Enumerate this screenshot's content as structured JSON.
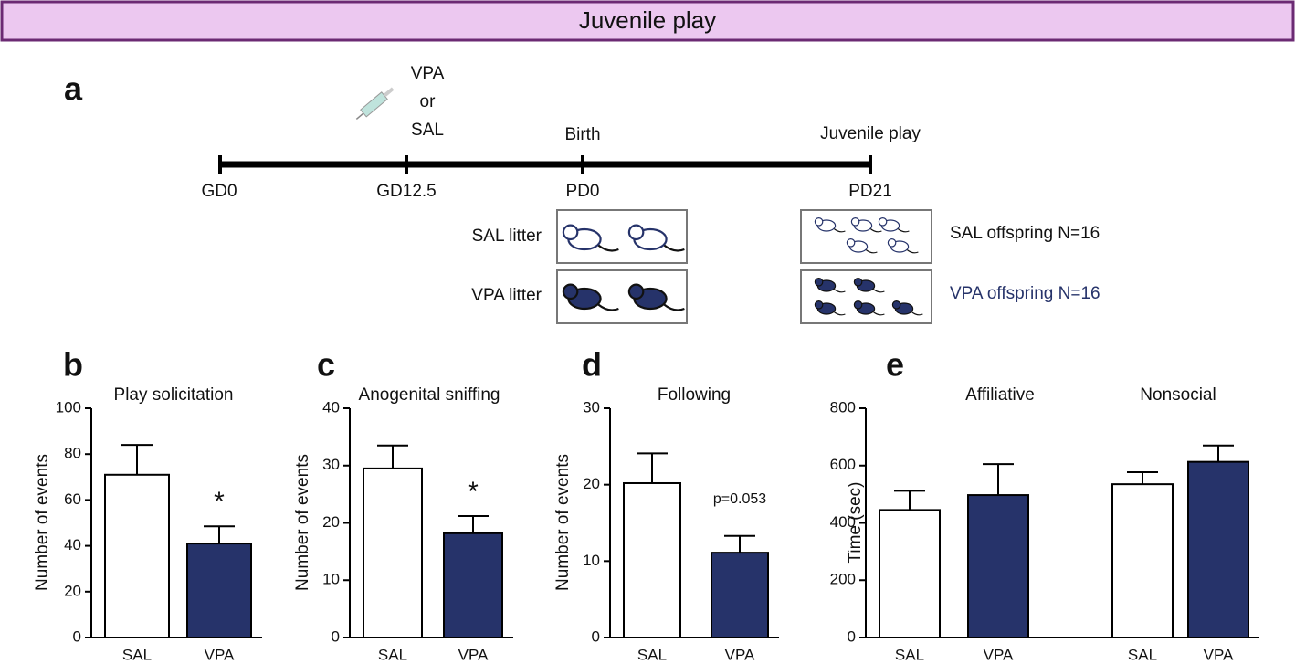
{
  "header": {
    "title": "Juvenile play"
  },
  "timeline": {
    "panel": "a",
    "injection": [
      "VPA",
      "or",
      "SAL"
    ],
    "events": [
      "Birth",
      "Juvenile play"
    ],
    "points": [
      "GD0",
      "GD12.5",
      "PD0",
      "PD21"
    ],
    "litters": [
      "SAL litter",
      "VPA litter"
    ],
    "offspring": [
      "SAL offspring N=16",
      "VPA offspring N=16"
    ]
  },
  "chart_data": [
    {
      "type": "bar",
      "panel": "b",
      "title": "Play solicitation",
      "ylabel": "Number of events",
      "categories": [
        "SAL",
        "VPA"
      ],
      "values": [
        71,
        41
      ],
      "errors": [
        13,
        7.5
      ],
      "colors": [
        "#ffffff",
        "#26336a"
      ],
      "annotation": "*",
      "ylim": [
        0,
        100
      ],
      "yticks": [
        0,
        20,
        40,
        60,
        80,
        100
      ]
    },
    {
      "type": "bar",
      "panel": "c",
      "title": "Anogenital sniffing",
      "ylabel": "Number of events",
      "categories": [
        "SAL",
        "VPA"
      ],
      "values": [
        29.5,
        18.2
      ],
      "errors": [
        4,
        3
      ],
      "colors": [
        "#ffffff",
        "#26336a"
      ],
      "annotation": "*",
      "ylim": [
        0,
        40
      ],
      "yticks": [
        0,
        10,
        20,
        30,
        40
      ]
    },
    {
      "type": "bar",
      "panel": "d",
      "title": "Following",
      "ylabel": "Number of events",
      "categories": [
        "SAL",
        "VPA"
      ],
      "values": [
        20.2,
        11.1
      ],
      "errors": [
        3.9,
        2.2
      ],
      "colors": [
        "#ffffff",
        "#26336a"
      ],
      "annotation": "p=0.053",
      "ylim": [
        0,
        30
      ],
      "yticks": [
        0,
        10,
        20,
        30
      ]
    },
    {
      "type": "grouped_bar",
      "panel": "e",
      "ylabel": "Time (sec)",
      "categories": [
        "Affiliative",
        "Nonsocial"
      ],
      "series": [
        {
          "name": "SAL",
          "color": "#ffffff",
          "values": [
            445,
            535
          ],
          "errors": [
            67,
            42
          ]
        },
        {
          "name": "VPA",
          "color": "#26336a",
          "values": [
            497,
            613
          ],
          "errors": [
            108,
            57
          ]
        }
      ],
      "ylim": [
        0,
        800
      ],
      "yticks": [
        0,
        200,
        400,
        600,
        800
      ]
    }
  ]
}
